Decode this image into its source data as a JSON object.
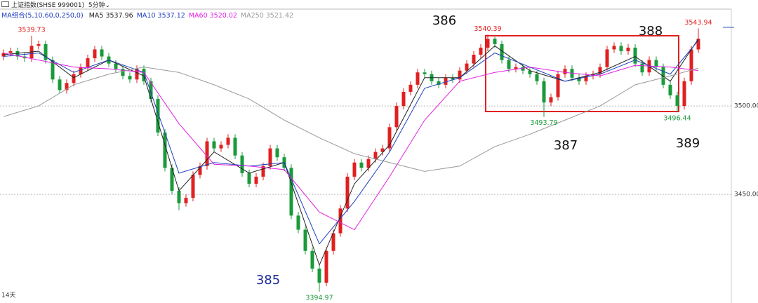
{
  "header": {
    "title": "上证指数(SHSE 999001)",
    "period": "5分钟",
    "footer": "14天"
  },
  "chart_data": {
    "type": "candlestick",
    "legend_title": "MA组合(5,10,60,0,250,0)",
    "ylim": [
      3393.3,
      3554.4
    ],
    "yticks": [
      {
        "value": 3500,
        "label": "3500.00"
      },
      {
        "value": 3450,
        "label": "3450.00"
      }
    ],
    "grid": true,
    "up_color": "#e02020",
    "down_color": "#1a9a3a",
    "annotations": [
      "385",
      "386",
      "387",
      "388",
      "389"
    ],
    "open": [
      3528,
      3530,
      3531,
      3528,
      3527,
      3534,
      3535,
      3526,
      3515,
      3509,
      3513,
      3518,
      3522,
      3527,
      3532,
      3528,
      3524,
      3521,
      3517,
      3515,
      3521,
      3514,
      3504,
      3485,
      3465,
      3452,
      3445,
      3448,
      3461,
      3466,
      3480,
      3476,
      3478,
      3482,
      3472,
      3462,
      3456,
      3460,
      3466,
      3476,
      3471,
      3465,
      3438,
      3430,
      3418,
      3408,
      3400,
      3418,
      3428,
      3442,
      3460,
      3468,
      3465,
      3470,
      3474,
      3476,
      3488,
      3500,
      3508,
      3512,
      3519,
      3518,
      3514,
      3512,
      3516,
      3515,
      3520,
      3524,
      3529,
      3533,
      3538,
      3535,
      3526,
      3521,
      3522,
      3520,
      3518,
      3514,
      3502,
      3505,
      3518,
      3521,
      3516,
      3514,
      3517,
      3518,
      3522,
      3532,
      3534,
      3531,
      3533,
      3524,
      3519,
      3526,
      3522,
      3512,
      3506,
      3500,
      3514,
      3532
    ],
    "high": [
      3532,
      3533,
      3533,
      3530,
      3539.73,
      3537,
      3537,
      3528,
      3517,
      3515,
      3520,
      3524,
      3529,
      3534,
      3534,
      3530,
      3526,
      3523,
      3519,
      3523,
      3523,
      3516,
      3506,
      3487,
      3467,
      3454,
      3450,
      3463,
      3468,
      3482,
      3482,
      3480,
      3484,
      3484,
      3474,
      3464,
      3462,
      3468,
      3478,
      3478,
      3473,
      3467,
      3440,
      3432,
      3420,
      3410,
      3420,
      3430,
      3444,
      3462,
      3470,
      3470,
      3472,
      3476,
      3478,
      3490,
      3502,
      3510,
      3514,
      3521,
      3521,
      3520,
      3516,
      3518,
      3518,
      3522,
      3526,
      3531,
      3535,
      3540.39,
      3539,
      3537,
      3528,
      3524,
      3524,
      3522,
      3520,
      3516,
      3507,
      3520,
      3523,
      3523,
      3518,
      3519,
      3520,
      3524,
      3534,
      3536,
      3536,
      3535,
      3535,
      3526,
      3528,
      3528,
      3524,
      3514,
      3508,
      3516,
      3534,
      3543.94
    ],
    "low": [
      3526,
      3528,
      3526,
      3525,
      3525,
      3532,
      3524,
      3513,
      3507,
      3507,
      3511,
      3516,
      3520,
      3525,
      3526,
      3522,
      3519,
      3515,
      3513,
      3513,
      3512,
      3502,
      3483,
      3463,
      3450,
      3441,
      3443,
      3446,
      3459,
      3464,
      3474,
      3474,
      3476,
      3470,
      3460,
      3454,
      3454,
      3458,
      3464,
      3469,
      3463,
      3436,
      3428,
      3416,
      3406,
      3394.97,
      3398,
      3416,
      3426,
      3440,
      3458,
      3463,
      3463,
      3468,
      3472,
      3474,
      3486,
      3498,
      3506,
      3510,
      3516,
      3512,
      3510,
      3510,
      3513,
      3513,
      3518,
      3522,
      3527,
      3531,
      3533,
      3524,
      3519,
      3519,
      3518,
      3516,
      3512,
      3493.79,
      3500,
      3503,
      3516,
      3514,
      3512,
      3512,
      3515,
      3516,
      3520,
      3530,
      3529,
      3529,
      3522,
      3517,
      3517,
      3520,
      3510,
      3504,
      3496.44,
      3498,
      3512,
      3530
    ],
    "close": [
      3530,
      3531,
      3528,
      3527,
      3534,
      3535,
      3526,
      3515,
      3509,
      3513,
      3518,
      3522,
      3527,
      3532,
      3528,
      3524,
      3521,
      3517,
      3515,
      3521,
      3514,
      3504,
      3485,
      3465,
      3452,
      3445,
      3448,
      3461,
      3466,
      3480,
      3476,
      3478,
      3482,
      3472,
      3462,
      3456,
      3460,
      3466,
      3476,
      3471,
      3465,
      3438,
      3430,
      3418,
      3408,
      3400,
      3418,
      3428,
      3442,
      3460,
      3468,
      3465,
      3470,
      3474,
      3476,
      3488,
      3500,
      3508,
      3512,
      3519,
      3518,
      3514,
      3512,
      3516,
      3515,
      3520,
      3524,
      3529,
      3533,
      3538,
      3535,
      3526,
      3521,
      3522,
      3520,
      3518,
      3514,
      3502,
      3505,
      3518,
      3521,
      3516,
      3514,
      3517,
      3518,
      3522,
      3532,
      3534,
      3531,
      3533,
      3524,
      3519,
      3526,
      3522,
      3512,
      3506,
      3500,
      3514,
      3532,
      3538
    ],
    "series": [
      {
        "name": "MA5",
        "color": "#222222",
        "x": [
          0,
          5,
          10,
          15,
          20,
          25,
          30,
          35,
          40,
          45,
          50,
          55,
          60,
          65,
          70,
          75,
          80,
          85,
          90,
          95,
          99
        ],
        "values": [
          3529,
          3531,
          3516,
          3526,
          3517,
          3452,
          3474,
          3462,
          3468,
          3410,
          3456,
          3478,
          3516,
          3516,
          3534,
          3520,
          3514,
          3519,
          3528,
          3514,
          3537.96
        ]
      },
      {
        "name": "MA10",
        "color": "#1f3fbf",
        "x": [
          0,
          5,
          10,
          15,
          20,
          25,
          30,
          35,
          40,
          45,
          50,
          55,
          60,
          65,
          70,
          75,
          80,
          85,
          90,
          95,
          99
        ],
        "values": [
          3528,
          3530,
          3519,
          3526,
          3519,
          3462,
          3468,
          3466,
          3468,
          3422,
          3446,
          3474,
          3510,
          3516,
          3530,
          3522,
          3514,
          3518,
          3526,
          3518,
          3537.12
        ]
      },
      {
        "name": "MA60",
        "color": "#e020e0",
        "x": [
          0,
          5,
          10,
          15,
          20,
          25,
          30,
          35,
          40,
          45,
          50,
          55,
          60,
          65,
          70,
          75,
          80,
          85,
          90,
          95,
          99
        ],
        "values": [
          3530,
          3526,
          3522,
          3521,
          3519,
          3490,
          3467,
          3466,
          3464,
          3440,
          3430,
          3460,
          3492,
          3514,
          3519,
          3522,
          3519,
          3517,
          3523,
          3522,
          3520.02
        ]
      },
      {
        "name": "MA250",
        "color": "#999999",
        "x": [
          0,
          5,
          10,
          15,
          20,
          25,
          30,
          35,
          40,
          45,
          50,
          55,
          60,
          65,
          70,
          75,
          80,
          85,
          90,
          95,
          99
        ],
        "values": [
          3494,
          3500,
          3512,
          3518,
          3522,
          3519,
          3512,
          3504,
          3492,
          3482,
          3473,
          3468,
          3463,
          3466,
          3477,
          3484,
          3492,
          3500,
          3512,
          3517,
          3521.42
        ]
      }
    ]
  }
}
